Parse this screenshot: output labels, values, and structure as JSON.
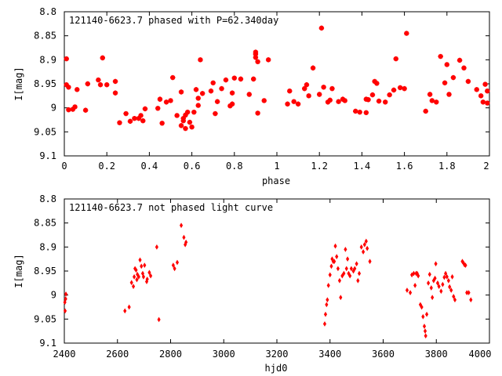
{
  "colors": {
    "marker": "#ff0000",
    "axes": "#000000",
    "background": "#ffffff"
  },
  "chart_data": [
    {
      "type": "scatter",
      "title": "121140-6623.7 phased with P=62.340day",
      "xlabel": "phase",
      "ylabel": "I[mag]",
      "xlim": [
        0,
        2
      ],
      "ylim": [
        9.1,
        8.8
      ],
      "y_inverted": true,
      "grid": false,
      "x_ticks": [
        "0",
        "0.2",
        "0.4",
        "0.6",
        "0.8",
        "1",
        "1.2",
        "1.4",
        "1.6",
        "1.8",
        "2"
      ],
      "y_ticks": [
        "8.8",
        "8.85",
        "8.9",
        "8.95",
        "9",
        "9.05",
        "9.1"
      ],
      "marker_style": "star",
      "points": [
        [
          0.01,
          8.952
        ],
        [
          0.01,
          8.898
        ],
        [
          0.02,
          8.957
        ],
        [
          0.02,
          9.004
        ],
        [
          0.04,
          9.003
        ],
        [
          0.05,
          8.998
        ],
        [
          0.06,
          8.962
        ],
        [
          0.1,
          9.005
        ],
        [
          0.11,
          8.95
        ],
        [
          0.16,
          8.942
        ],
        [
          0.17,
          8.952
        ],
        [
          0.18,
          8.896
        ],
        [
          0.2,
          8.952
        ],
        [
          0.24,
          8.945
        ],
        [
          0.24,
          8.969
        ],
        [
          0.26,
          9.031
        ],
        [
          0.29,
          9.012
        ],
        [
          0.31,
          9.028
        ],
        [
          0.33,
          9.022
        ],
        [
          0.35,
          9.022
        ],
        [
          0.36,
          9.016
        ],
        [
          0.37,
          9.027
        ],
        [
          0.38,
          9.002
        ],
        [
          0.44,
          9.001
        ],
        [
          0.45,
          8.982
        ],
        [
          0.46,
          9.032
        ],
        [
          0.48,
          8.988
        ],
        [
          0.5,
          8.985
        ],
        [
          0.51,
          8.937
        ],
        [
          0.53,
          9.016
        ],
        [
          0.55,
          9.037
        ],
        [
          0.55,
          8.967
        ],
        [
          0.56,
          9.027
        ],
        [
          0.56,
          9.022
        ],
        [
          0.57,
          9.043
        ],
        [
          0.57,
          9.015
        ],
        [
          0.58,
          9.009
        ],
        [
          0.59,
          9.03
        ],
        [
          0.6,
          9.04
        ],
        [
          0.61,
          9.009
        ],
        [
          0.62,
          8.962
        ],
        [
          0.63,
          8.995
        ],
        [
          0.63,
          8.98
        ],
        [
          0.64,
          8.9
        ],
        [
          0.65,
          8.97
        ],
        [
          0.69,
          8.965
        ],
        [
          0.7,
          8.948
        ],
        [
          0.71,
          9.012
        ],
        [
          0.72,
          8.987
        ],
        [
          0.74,
          8.96
        ],
        [
          0.76,
          8.942
        ],
        [
          0.78,
          8.996
        ],
        [
          0.79,
          8.992
        ],
        [
          0.79,
          8.969
        ],
        [
          0.8,
          8.938
        ],
        [
          0.83,
          8.94
        ],
        [
          0.87,
          8.972
        ],
        [
          0.89,
          8.94
        ],
        [
          0.9,
          8.895
        ],
        [
          0.9,
          8.888
        ],
        [
          0.9,
          8.884
        ],
        [
          0.91,
          9.011
        ],
        [
          0.91,
          8.904
        ],
        [
          0.94,
          8.985
        ],
        [
          0.96,
          8.9
        ],
        [
          1.05,
          8.992
        ],
        [
          1.06,
          8.965
        ],
        [
          1.08,
          8.987
        ],
        [
          1.1,
          8.992
        ],
        [
          1.13,
          8.96
        ],
        [
          1.14,
          8.952
        ],
        [
          1.15,
          8.975
        ],
        [
          1.17,
          8.917
        ],
        [
          1.2,
          8.972
        ],
        [
          1.21,
          8.834
        ],
        [
          1.22,
          8.957
        ],
        [
          1.24,
          8.988
        ],
        [
          1.25,
          8.984
        ],
        [
          1.26,
          8.96
        ],
        [
          1.29,
          8.987
        ],
        [
          1.31,
          8.982
        ],
        [
          1.32,
          8.985
        ],
        [
          1.37,
          9.007
        ],
        [
          1.39,
          9.009
        ],
        [
          1.42,
          9.01
        ],
        [
          1.42,
          8.982
        ],
        [
          1.43,
          8.983
        ],
        [
          1.45,
          8.973
        ],
        [
          1.46,
          8.945
        ],
        [
          1.47,
          8.949
        ],
        [
          1.48,
          8.986
        ],
        [
          1.51,
          8.988
        ],
        [
          1.53,
          8.973
        ],
        [
          1.55,
          8.963
        ],
        [
          1.56,
          8.898
        ],
        [
          1.58,
          8.958
        ],
        [
          1.6,
          8.96
        ],
        [
          1.61,
          8.845
        ],
        [
          1.7,
          9.007
        ],
        [
          1.72,
          8.972
        ],
        [
          1.73,
          8.985
        ],
        [
          1.75,
          8.988
        ],
        [
          1.77,
          8.893
        ],
        [
          1.79,
          8.948
        ],
        [
          1.8,
          8.91
        ],
        [
          1.81,
          8.972
        ],
        [
          1.83,
          8.937
        ],
        [
          1.86,
          8.901
        ],
        [
          1.88,
          8.917
        ],
        [
          1.9,
          8.945
        ],
        [
          1.94,
          8.962
        ],
        [
          1.96,
          8.975
        ],
        [
          1.97,
          8.988
        ],
        [
          1.98,
          8.951
        ],
        [
          1.99,
          8.965
        ],
        [
          1.99,
          8.99
        ]
      ]
    },
    {
      "type": "scatter",
      "title": "121140-6623.7 not phased light curve",
      "xlabel": "hjd0",
      "ylabel": "I[mag]",
      "xlim": [
        2400,
        4000
      ],
      "ylim": [
        9.1,
        8.8
      ],
      "y_inverted": true,
      "grid": false,
      "x_ticks": [
        "2400",
        "2600",
        "2800",
        "3000",
        "3200",
        "3400",
        "3600",
        "3800",
        "4000"
      ],
      "y_ticks": [
        "8.8",
        "8.85",
        "8.9",
        "8.95",
        "9",
        "9.05",
        "9.1"
      ],
      "marker_style": "diamond",
      "points": [
        [
          2402,
          9.015
        ],
        [
          2403,
          9.033
        ],
        [
          2405,
          9.008
        ],
        [
          2406,
          8.998
        ],
        [
          2628,
          9.033
        ],
        [
          2644,
          9.025
        ],
        [
          2653,
          8.974
        ],
        [
          2660,
          8.982
        ],
        [
          2663,
          8.962
        ],
        [
          2666,
          8.945
        ],
        [
          2670,
          8.948
        ],
        [
          2673,
          8.968
        ],
        [
          2675,
          8.957
        ],
        [
          2680,
          8.962
        ],
        [
          2685,
          8.927
        ],
        [
          2690,
          8.94
        ],
        [
          2695,
          8.955
        ],
        [
          2698,
          8.962
        ],
        [
          2702,
          8.938
        ],
        [
          2710,
          8.972
        ],
        [
          2712,
          8.967
        ],
        [
          2720,
          8.953
        ],
        [
          2725,
          8.96
        ],
        [
          2748,
          8.9
        ],
        [
          2756,
          9.051
        ],
        [
          2810,
          8.938
        ],
        [
          2815,
          8.945
        ],
        [
          2825,
          8.932
        ],
        [
          2840,
          8.855
        ],
        [
          2850,
          8.88
        ],
        [
          2855,
          8.895
        ],
        [
          2858,
          8.89
        ],
        [
          3380,
          9.06
        ],
        [
          3383,
          9.04
        ],
        [
          3387,
          9.02
        ],
        [
          3390,
          9.01
        ],
        [
          3394,
          8.98
        ],
        [
          3400,
          8.958
        ],
        [
          3405,
          8.94
        ],
        [
          3408,
          8.925
        ],
        [
          3412,
          8.93
        ],
        [
          3416,
          8.93
        ],
        [
          3420,
          8.898
        ],
        [
          3425,
          8.92
        ],
        [
          3430,
          8.945
        ],
        [
          3436,
          8.97
        ],
        [
          3440,
          9.005
        ],
        [
          3446,
          8.96
        ],
        [
          3452,
          8.955
        ],
        [
          3458,
          8.905
        ],
        [
          3462,
          8.945
        ],
        [
          3466,
          8.925
        ],
        [
          3470,
          8.955
        ],
        [
          3475,
          8.96
        ],
        [
          3480,
          8.945
        ],
        [
          3488,
          8.95
        ],
        [
          3493,
          8.945
        ],
        [
          3500,
          8.935
        ],
        [
          3505,
          8.97
        ],
        [
          3510,
          8.955
        ],
        [
          3518,
          8.9
        ],
        [
          3525,
          8.91
        ],
        [
          3530,
          8.895
        ],
        [
          3536,
          8.888
        ],
        [
          3540,
          8.903
        ],
        [
          3550,
          8.93
        ],
        [
          3690,
          8.99
        ],
        [
          3702,
          8.995
        ],
        [
          3708,
          8.958
        ],
        [
          3715,
          8.955
        ],
        [
          3720,
          8.98
        ],
        [
          3724,
          8.955
        ],
        [
          3728,
          8.955
        ],
        [
          3732,
          8.96
        ],
        [
          3740,
          9.02
        ],
        [
          3745,
          9.025
        ],
        [
          3750,
          9.045
        ],
        [
          3755,
          9.065
        ],
        [
          3758,
          9.075
        ],
        [
          3760,
          9.085
        ],
        [
          3764,
          9.04
        ],
        [
          3770,
          8.975
        ],
        [
          3775,
          8.957
        ],
        [
          3781,
          8.985
        ],
        [
          3785,
          9.005
        ],
        [
          3790,
          8.97
        ],
        [
          3795,
          8.965
        ],
        [
          3798,
          8.935
        ],
        [
          3805,
          8.975
        ],
        [
          3810,
          8.982
        ],
        [
          3818,
          8.992
        ],
        [
          3824,
          8.978
        ],
        [
          3830,
          8.963
        ],
        [
          3835,
          8.955
        ],
        [
          3840,
          8.962
        ],
        [
          3846,
          8.97
        ],
        [
          3850,
          8.983
        ],
        [
          3856,
          8.99
        ],
        [
          3860,
          8.962
        ],
        [
          3865,
          9.003
        ],
        [
          3870,
          9.01
        ],
        [
          3898,
          8.93
        ],
        [
          3902,
          8.933
        ],
        [
          3906,
          8.937
        ],
        [
          3910,
          8.938
        ],
        [
          3915,
          8.995
        ],
        [
          3922,
          8.995
        ],
        [
          3930,
          9.01
        ]
      ]
    }
  ]
}
